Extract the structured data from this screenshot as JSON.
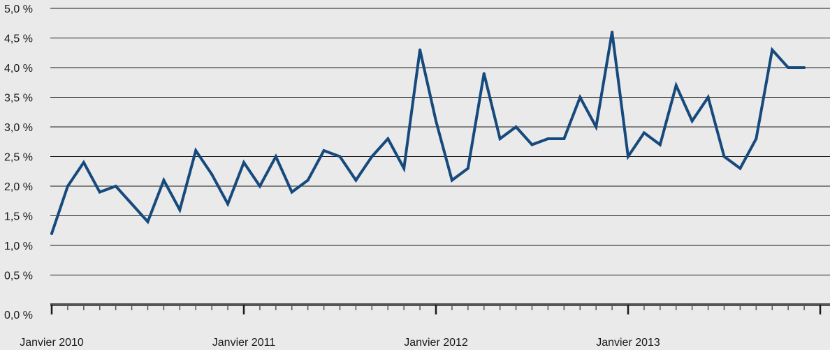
{
  "chart_data": {
    "type": "line",
    "title": "",
    "xlabel": "",
    "ylabel": "",
    "ylim": [
      0,
      5
    ],
    "grid": true,
    "y_ticks": [
      "0,0 %",
      "0,5 %",
      "1,0 %",
      "1,5 %",
      "2,0 %",
      "2,5 %",
      "3,0 %",
      "3,5 %",
      "4,0 %",
      "4,5 %",
      "5,0 %"
    ],
    "x_tick_labels": [
      "Janvier 2010",
      "Janvier 2011",
      "Janvier 2012",
      "Janvier 2013"
    ],
    "x_start": "2010-01",
    "x_end": "2014-01",
    "series": [
      {
        "color": "#174a7c",
        "x": [
          "2010-01",
          "2010-02",
          "2010-03",
          "2010-04",
          "2010-05",
          "2010-06",
          "2010-07",
          "2010-08",
          "2010-09",
          "2010-10",
          "2010-11",
          "2010-12",
          "2011-01",
          "2011-02",
          "2011-03",
          "2011-04",
          "2011-05",
          "2011-06",
          "2011-07",
          "2011-08",
          "2011-09",
          "2011-10",
          "2011-11",
          "2011-12",
          "2012-01",
          "2012-02",
          "2012-03",
          "2012-04",
          "2012-05",
          "2012-06",
          "2012-07",
          "2012-08",
          "2012-09",
          "2012-10",
          "2012-11",
          "2012-12",
          "2013-01",
          "2013-02",
          "2013-03",
          "2013-04",
          "2013-05",
          "2013-06",
          "2013-07",
          "2013-08",
          "2013-09",
          "2013-10",
          "2013-11",
          "2013-12"
        ],
        "values": [
          1.2,
          2.0,
          2.4,
          1.9,
          2.0,
          1.7,
          1.4,
          2.1,
          1.6,
          2.6,
          2.2,
          1.7,
          2.4,
          2.0,
          2.5,
          1.9,
          2.1,
          2.6,
          2.5,
          2.1,
          2.5,
          2.8,
          2.3,
          4.3,
          3.1,
          2.1,
          2.3,
          3.9,
          2.8,
          3.0,
          2.7,
          2.8,
          2.8,
          3.5,
          3.0,
          4.6,
          2.5,
          2.9,
          2.7,
          3.7,
          3.1,
          3.5,
          2.5,
          2.3,
          2.8,
          4.3,
          4.0,
          4.0
        ]
      }
    ]
  },
  "colors": {
    "plot_background": "#eaeaea",
    "gridline": "#1a1a1a",
    "axis": "#555555",
    "line": "#174a7c"
  }
}
